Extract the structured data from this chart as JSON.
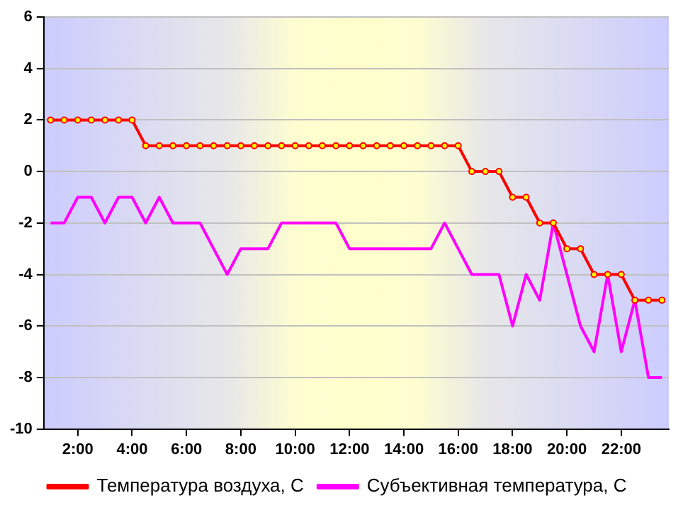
{
  "chart_data": {
    "type": "line",
    "x": [
      1,
      1.5,
      2,
      2.5,
      3,
      3.5,
      4,
      4.5,
      5,
      5.5,
      6,
      6.5,
      7,
      7.5,
      8,
      8.5,
      9,
      9.5,
      10,
      10.5,
      11,
      11.5,
      12,
      12.5,
      13,
      13.5,
      14,
      14.5,
      15,
      15.5,
      16,
      16.5,
      17,
      17.5,
      18,
      18.5,
      19,
      19.5,
      20,
      20.5,
      21,
      21.5,
      22,
      22.5,
      23,
      23.5
    ],
    "series": [
      {
        "name": "Температура воздуха, С",
        "color": "#ff0000",
        "marker": "circle",
        "values": [
          2,
          2,
          2,
          2,
          2,
          2,
          2,
          1,
          1,
          1,
          1,
          1,
          1,
          1,
          1,
          1,
          1,
          1,
          1,
          1,
          1,
          1,
          1,
          1,
          1,
          1,
          1,
          1,
          1,
          1,
          1,
          0,
          0,
          0,
          -1,
          -1,
          -2,
          -2,
          -3,
          -3,
          -4,
          -4,
          -4,
          -5,
          -5,
          -5
        ]
      },
      {
        "name": "Субъективная температура, С",
        "color": "#ff00ff",
        "marker": "none",
        "values": [
          -2,
          -2,
          -1,
          -1,
          -2,
          -1,
          -1,
          -2,
          -1,
          -2,
          -2,
          -2,
          -3,
          -4,
          -3,
          -3,
          -3,
          -2,
          -2,
          -2,
          -2,
          -2,
          -3,
          -3,
          -3,
          -3,
          -3,
          -3,
          -3,
          -2,
          -3,
          -4,
          -4,
          -4,
          -6,
          -4,
          -5,
          -2,
          -4,
          -6,
          -7,
          -4,
          -7,
          -5,
          -8,
          -8
        ]
      }
    ],
    "xlim": [
      0.75,
      23.75
    ],
    "xticks": [
      {
        "value": 2,
        "label": "2:00"
      },
      {
        "value": 4,
        "label": "4:00"
      },
      {
        "value": 6,
        "label": "6:00"
      },
      {
        "value": 8,
        "label": "8:00"
      },
      {
        "value": 10,
        "label": "10:00"
      },
      {
        "value": 12,
        "label": "12:00"
      },
      {
        "value": 14,
        "label": "14:00"
      },
      {
        "value": 16,
        "label": "16:00"
      },
      {
        "value": 18,
        "label": "18:00"
      },
      {
        "value": 20,
        "label": "20:00"
      },
      {
        "value": 22,
        "label": "22:00"
      }
    ],
    "ylim": [
      -10,
      6
    ],
    "yticks": [
      -10,
      -8,
      -6,
      -4,
      -2,
      0,
      2,
      4,
      6
    ],
    "grid": "y",
    "legend": "bottom"
  }
}
